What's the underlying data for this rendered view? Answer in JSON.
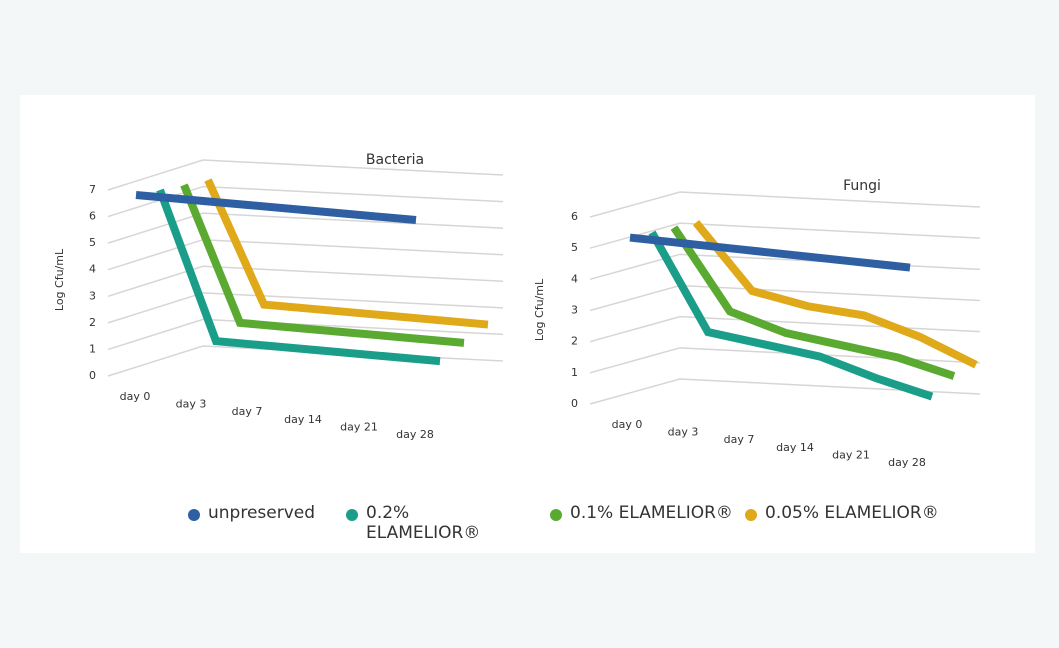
{
  "chart_data": [
    {
      "type": "line3d",
      "title": "Bacteria",
      "y_label": "Log Cfu/mL",
      "categories": [
        "day 0",
        "day 3",
        "day 7",
        "day 14",
        "day 21",
        "day 28"
      ],
      "ylim": [
        0,
        7
      ],
      "yticks": [
        0,
        1,
        2,
        3,
        4,
        5,
        6,
        7
      ],
      "grid": true,
      "series": [
        {
          "name": "unpreserved",
          "color": "#2e5fa3",
          "values": [
            7,
            7,
            7,
            7,
            7,
            7
          ]
        },
        {
          "name": "0.2% ELAMELIOR®",
          "color": "#1a9e8a",
          "values": [
            7,
            1.5,
            1.5,
            1.5,
            1.5,
            1.5
          ]
        },
        {
          "name": "0.1% ELAMELIOR®",
          "color": "#5aaa32",
          "values": [
            7,
            2,
            2,
            2,
            2,
            2
          ]
        },
        {
          "name": "0.05% ELAMELIOR®",
          "color": "#e0a91a",
          "values": [
            7,
            2.5,
            2.5,
            2.5,
            2.5,
            2.5
          ]
        }
      ]
    },
    {
      "type": "line3d",
      "title": "Fungi",
      "y_label": "Log Cfu/mL",
      "categories": [
        "day 0",
        "day 3",
        "day 7",
        "day 14",
        "day 21",
        "day 28"
      ],
      "ylim": [
        0,
        6
      ],
      "yticks": [
        0,
        1,
        2,
        3,
        4,
        5,
        6
      ],
      "grid": true,
      "series": [
        {
          "color": "#2e5fa3",
          "values": [
            5.5,
            5.5,
            5.5,
            5.5,
            5.5,
            5.5
          ]
        },
        {
          "color": "#1a9e8a",
          "values": [
            5.5,
            2.5,
            2.3,
            2.1,
            1.6,
            1.2
          ]
        },
        {
          "color": "#5aaa32",
          "values": [
            5.5,
            3,
            2.5,
            2.3,
            2.1,
            1.7
          ]
        },
        {
          "color": "#e0a91a",
          "values": [
            5.5,
            3.5,
            3.2,
            3.1,
            2.6,
            1.9
          ]
        }
      ]
    }
  ]
}
